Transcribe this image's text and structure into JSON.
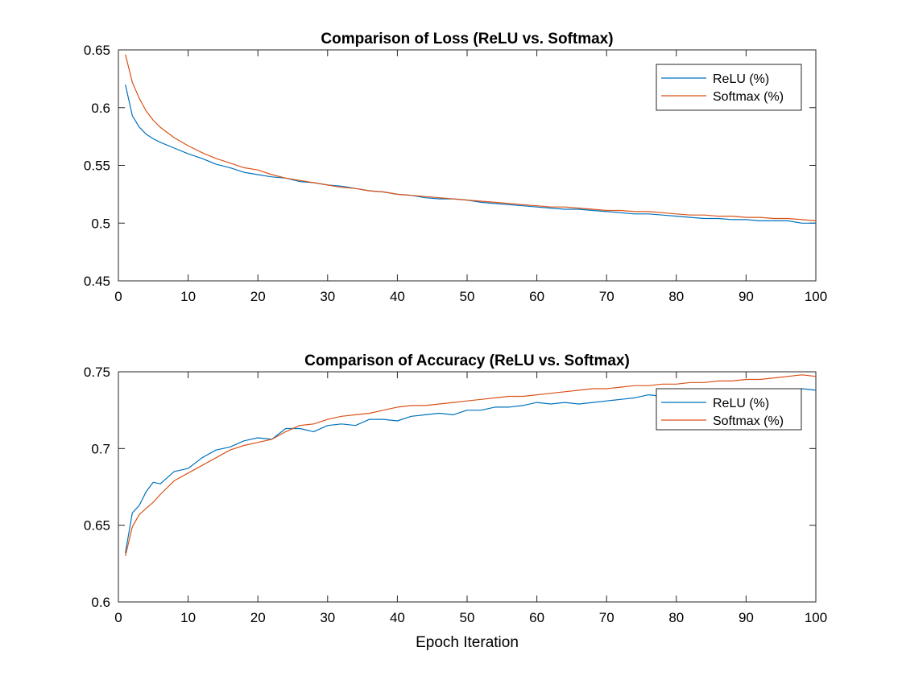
{
  "figure": {
    "xlabel": "Epoch Iteration"
  },
  "chart_data": [
    {
      "type": "line",
      "title": "Comparison of Loss (ReLU vs. Softmax)",
      "xlabel": "",
      "ylabel": "",
      "xlim": [
        0,
        100
      ],
      "ylim": [
        0.45,
        0.65
      ],
      "xticks": [
        0,
        10,
        20,
        30,
        40,
        50,
        60,
        70,
        80,
        90,
        100
      ],
      "yticks": [
        0.45,
        0.5,
        0.55,
        0.6,
        0.65
      ],
      "xtick_labels": [
        "0",
        "10",
        "20",
        "30",
        "40",
        "50",
        "60",
        "70",
        "80",
        "90",
        "100"
      ],
      "ytick_labels": [
        "0.45",
        "0.5",
        "0.55",
        "0.6",
        "0.65"
      ],
      "grid": false,
      "legend": "top-right",
      "x": [
        1,
        2,
        3,
        4,
        5,
        6,
        8,
        10,
        12,
        14,
        16,
        18,
        20,
        22,
        24,
        26,
        28,
        30,
        32,
        34,
        36,
        38,
        40,
        42,
        44,
        46,
        48,
        50,
        52,
        54,
        56,
        58,
        60,
        62,
        64,
        66,
        68,
        70,
        72,
        74,
        76,
        78,
        80,
        82,
        84,
        86,
        88,
        90,
        92,
        94,
        96,
        98,
        100
      ],
      "series": [
        {
          "name": "ReLU (%)",
          "color": "#0072BD",
          "values": [
            0.62,
            0.593,
            0.583,
            0.577,
            0.573,
            0.57,
            0.565,
            0.56,
            0.556,
            0.551,
            0.548,
            0.544,
            0.542,
            0.54,
            0.539,
            0.536,
            0.535,
            0.533,
            0.532,
            0.53,
            0.528,
            0.527,
            0.525,
            0.524,
            0.522,
            0.521,
            0.521,
            0.52,
            0.518,
            0.517,
            0.516,
            0.515,
            0.514,
            0.513,
            0.512,
            0.512,
            0.511,
            0.51,
            0.509,
            0.508,
            0.508,
            0.507,
            0.506,
            0.505,
            0.504,
            0.504,
            0.503,
            0.503,
            0.502,
            0.502,
            0.502,
            0.5,
            0.5
          ]
        },
        {
          "name": "Softmax (%)",
          "color": "#D95319",
          "values": [
            0.646,
            0.622,
            0.608,
            0.597,
            0.589,
            0.583,
            0.574,
            0.567,
            0.561,
            0.556,
            0.552,
            0.548,
            0.546,
            0.542,
            0.539,
            0.537,
            0.535,
            0.533,
            0.531,
            0.53,
            0.528,
            0.527,
            0.525,
            0.524,
            0.523,
            0.522,
            0.521,
            0.52,
            0.519,
            0.518,
            0.517,
            0.516,
            0.515,
            0.514,
            0.514,
            0.513,
            0.512,
            0.511,
            0.511,
            0.51,
            0.51,
            0.509,
            0.508,
            0.507,
            0.507,
            0.506,
            0.506,
            0.505,
            0.505,
            0.504,
            0.504,
            0.503,
            0.502
          ]
        }
      ]
    },
    {
      "type": "line",
      "title": "Comparison of Accuracy (ReLU vs. Softmax)",
      "xlabel": "Epoch Iteration",
      "ylabel": "",
      "xlim": [
        0,
        100
      ],
      "ylim": [
        0.6,
        0.75
      ],
      "xticks": [
        0,
        10,
        20,
        30,
        40,
        50,
        60,
        70,
        80,
        90,
        100
      ],
      "yticks": [
        0.6,
        0.65,
        0.7,
        0.75
      ],
      "xtick_labels": [
        "0",
        "10",
        "20",
        "30",
        "40",
        "50",
        "60",
        "70",
        "80",
        "90",
        "100"
      ],
      "ytick_labels": [
        "0.6",
        "0.65",
        "0.7",
        "0.75"
      ],
      "grid": false,
      "legend": "top-right",
      "x": [
        1,
        2,
        3,
        4,
        5,
        6,
        8,
        10,
        12,
        14,
        16,
        18,
        20,
        22,
        24,
        26,
        28,
        30,
        32,
        34,
        36,
        38,
        40,
        42,
        44,
        46,
        48,
        50,
        52,
        54,
        56,
        58,
        60,
        62,
        64,
        66,
        68,
        70,
        72,
        74,
        76,
        78,
        80,
        82,
        84,
        86,
        88,
        90,
        92,
        94,
        96,
        98,
        100
      ],
      "series": [
        {
          "name": "ReLU (%)",
          "color": "#0072BD",
          "values": [
            0.632,
            0.658,
            0.663,
            0.672,
            0.678,
            0.677,
            0.685,
            0.687,
            0.694,
            0.699,
            0.701,
            0.705,
            0.707,
            0.706,
            0.713,
            0.713,
            0.711,
            0.715,
            0.716,
            0.715,
            0.719,
            0.719,
            0.718,
            0.721,
            0.722,
            0.723,
            0.722,
            0.725,
            0.725,
            0.727,
            0.727,
            0.728,
            0.73,
            0.729,
            0.73,
            0.729,
            0.73,
            0.731,
            0.732,
            0.733,
            0.735,
            0.734,
            0.734,
            0.735,
            0.735,
            0.735,
            0.736,
            0.737,
            0.736,
            0.737,
            0.737,
            0.739,
            0.738
          ]
        },
        {
          "name": "Softmax (%)",
          "color": "#D95319",
          "values": [
            0.63,
            0.649,
            0.657,
            0.661,
            0.665,
            0.67,
            0.679,
            0.684,
            0.689,
            0.694,
            0.699,
            0.702,
            0.704,
            0.706,
            0.711,
            0.715,
            0.716,
            0.719,
            0.721,
            0.722,
            0.723,
            0.725,
            0.727,
            0.728,
            0.728,
            0.729,
            0.73,
            0.731,
            0.732,
            0.733,
            0.734,
            0.734,
            0.735,
            0.736,
            0.737,
            0.738,
            0.739,
            0.739,
            0.74,
            0.741,
            0.741,
            0.742,
            0.742,
            0.743,
            0.743,
            0.744,
            0.744,
            0.745,
            0.745,
            0.746,
            0.747,
            0.748,
            0.747
          ]
        }
      ]
    }
  ]
}
